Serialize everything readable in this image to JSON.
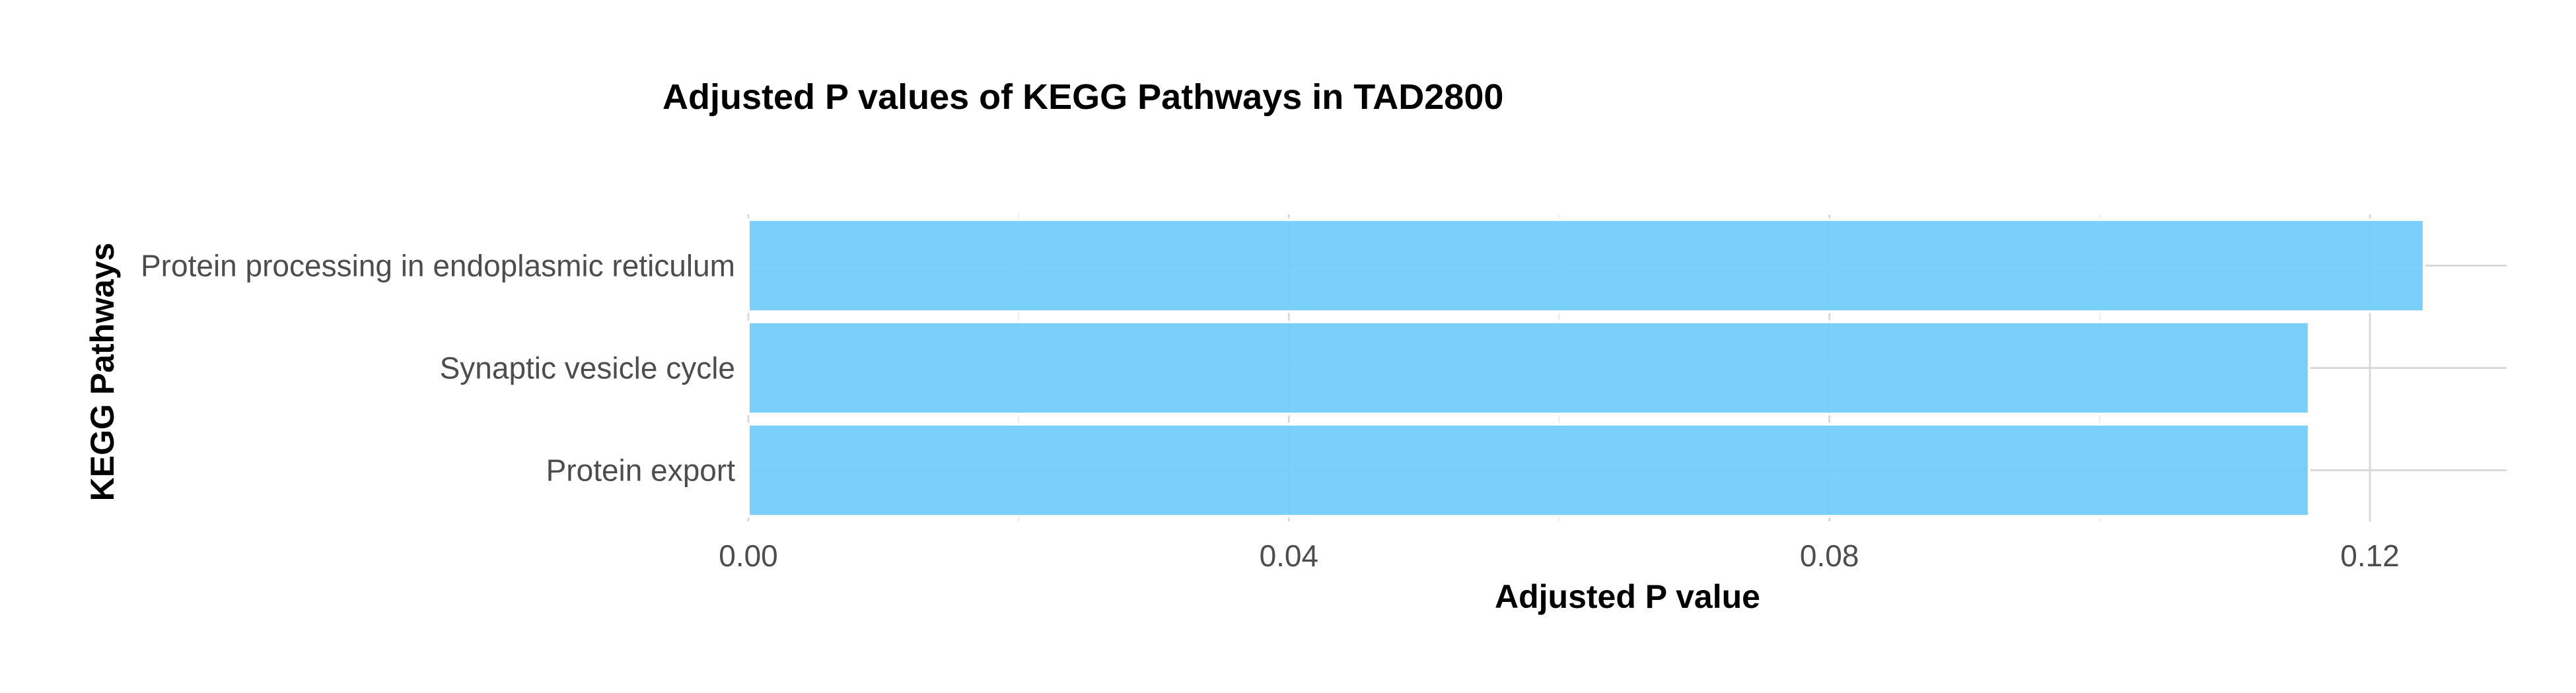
{
  "chart_data": {
    "type": "bar",
    "orientation": "horizontal",
    "title": "Adjusted P values of KEGG Pathways in TAD2800",
    "xlabel": "Adjusted P value",
    "ylabel": "KEGG Pathways",
    "categories": [
      "Protein processing in endoplasmic reticulum",
      "Synaptic vesicle cycle",
      "Protein export"
    ],
    "values": [
      0.124,
      0.1155,
      0.1155
    ],
    "xlim": [
      0,
      0.13
    ],
    "xticks": [
      0.0,
      0.04,
      0.08,
      0.12
    ],
    "xtick_labels": [
      "0.00",
      "0.04",
      "0.08",
      "0.12"
    ],
    "grid": true,
    "legend": "none",
    "bar_color": "#73CEFB"
  }
}
